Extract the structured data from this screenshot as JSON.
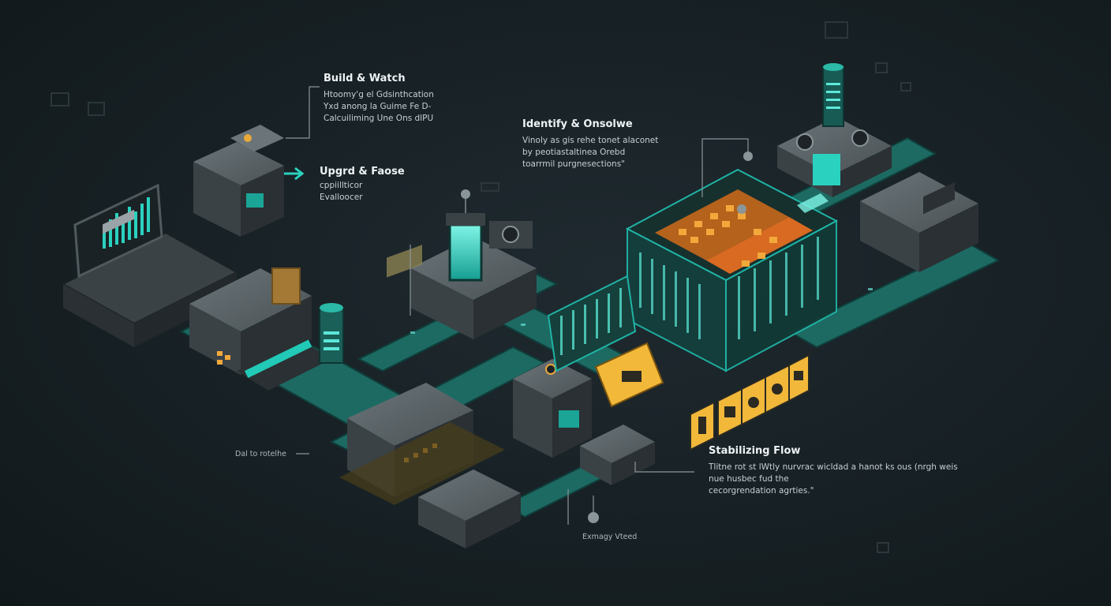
{
  "colors": {
    "background": "#172024",
    "teal": "#1fb3a5",
    "teal_dark": "#137a72",
    "panel_gray": "#4a5256",
    "panel_dark": "#2a3033",
    "orange": "#e8922a",
    "yellow": "#f2b83a"
  },
  "labels": {
    "build": {
      "title": "Build & Watch",
      "lines": [
        "Htoomy'g el Gdsinthcation",
        "Yxd anong la Guime Fe D-",
        "Calcuiliming Une Ons dlPU"
      ]
    },
    "upgrade": {
      "title": "Upgrd & Faose",
      "lines": [
        "cppiillticor",
        "Evalloocer"
      ]
    },
    "identify": {
      "title": "Identify & Onsolwe",
      "lines": [
        "Vinoly as gis rehe tonet alaconet",
        "by peotiastaltinea Orebd",
        "toarrmil purgnesections\""
      ]
    },
    "stabilizing": {
      "title": "Stabilizing Flow",
      "lines": [
        "Tlitne rot st lWtly nurvrac wicldad a hanot ks ous (nrgh weis",
        "nue husbec fud the",
        "cecorgrendation agrties.\""
      ]
    },
    "dal": "Dal to rotelhe",
    "energy": "Exmagy Vteed"
  }
}
